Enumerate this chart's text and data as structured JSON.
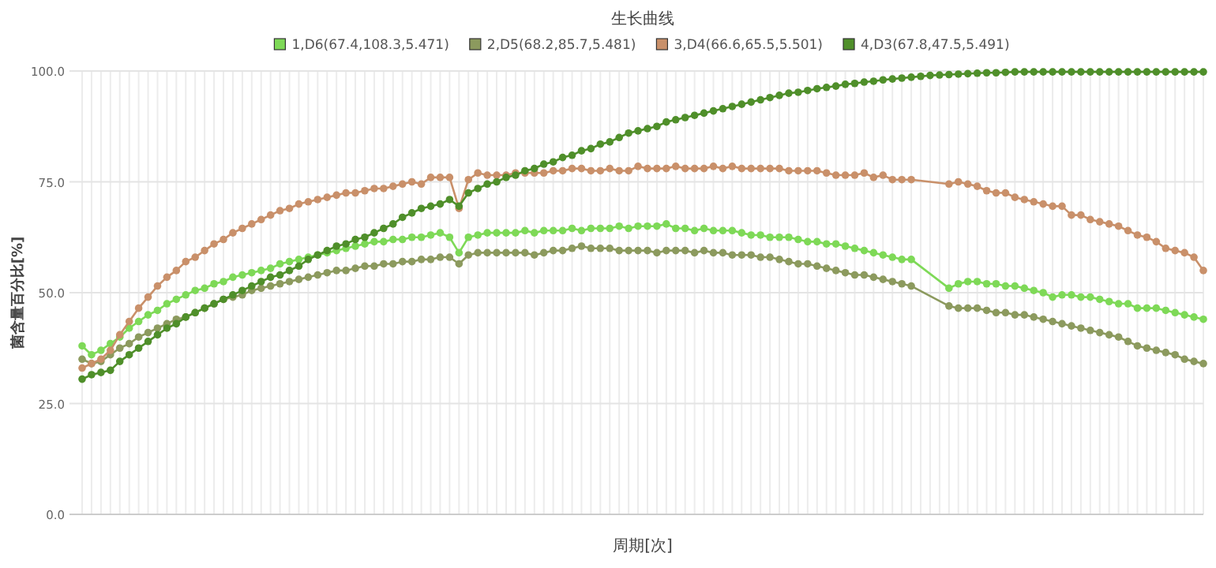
{
  "chart_data": {
    "type": "line",
    "title": "生长曲线",
    "xlabel": "周期[次]",
    "ylabel": "菌含量百分比[%]",
    "categories": [
      null,
      null,
      null,
      null,
      null,
      null,
      null,
      null,
      null,
      null,
      null,
      null,
      null,
      null,
      null,
      null,
      null,
      null,
      null,
      null,
      null,
      null,
      null,
      null,
      null,
      null,
      null,
      null,
      null,
      null,
      null,
      null,
      null,
      null,
      null,
      null,
      null,
      null,
      null,
      null,
      null,
      null,
      null,
      null,
      null,
      null,
      null,
      null,
      null,
      null,
      null,
      null,
      null,
      null,
      null,
      null,
      null,
      null,
      null,
      null,
      null,
      null,
      null,
      null,
      null,
      null,
      null,
      null,
      null,
      null,
      null,
      null,
      null,
      null,
      null,
      null,
      null,
      null,
      null,
      null,
      null,
      null,
      null,
      null,
      null,
      null,
      null,
      null,
      null,
      null,
      null,
      null,
      null,
      null,
      null,
      null,
      null,
      null,
      null,
      null,
      null,
      null,
      null,
      null,
      null,
      null,
      null,
      null,
      null,
      null,
      null,
      null,
      null,
      null,
      null,
      null,
      null,
      null,
      null,
      null
    ],
    "series": [
      {
        "name": "1,D6(67.4,108.3,5.471)",
        "color": "#7ed957",
        "values": [
          38,
          36,
          37,
          38.5,
          40,
          42,
          43.5,
          45,
          46,
          47.5,
          48.5,
          49.5,
          50.5,
          51,
          52,
          52.5,
          53.5,
          54,
          54.5,
          55,
          55.5,
          56.5,
          57,
          57.5,
          58,
          58.5,
          59,
          59.5,
          60,
          60.5,
          61,
          61.5,
          61.5,
          62,
          62,
          62.5,
          62.5,
          63,
          63.5,
          62.5,
          59,
          62.5,
          63,
          63.5,
          63.5,
          63.5,
          63.5,
          64,
          63.5,
          64,
          64,
          64,
          64.5,
          64,
          64.5,
          64.5,
          64.5,
          65,
          64.5,
          65,
          65,
          65,
          65.5,
          64.5,
          64.5,
          64,
          64.5,
          64,
          64,
          64,
          63.5,
          63,
          63,
          62.5,
          62.5,
          62.5,
          62,
          61.5,
          61.5,
          61,
          61,
          60.5,
          60,
          59.5,
          59,
          58.5,
          58,
          57.5,
          57.5,
          null,
          null,
          null,
          51,
          52,
          52.5,
          52.5,
          52,
          52,
          51.5,
          51.5,
          51,
          50.5,
          50,
          49,
          49.5,
          49.5,
          49,
          49,
          48.5,
          48,
          47.5,
          47.5,
          46.5,
          46.5,
          46.5,
          46,
          45.5,
          45,
          44.5,
          44
        ]
      },
      {
        "name": "2,D5(68.2,85.7,5.481)",
        "color": "#8c9a5e",
        "values": [
          35,
          34,
          34.5,
          36,
          37.5,
          38.5,
          40,
          41,
          42,
          43,
          44,
          44.5,
          45.5,
          46.5,
          47.5,
          48.5,
          49,
          49.5,
          50.5,
          51,
          51.5,
          52,
          52.5,
          53,
          53.5,
          54,
          54.5,
          55,
          55,
          55.5,
          56,
          56,
          56.5,
          56.5,
          57,
          57,
          57.5,
          57.5,
          58,
          58,
          56.5,
          58.5,
          59,
          59,
          59,
          59,
          59,
          59,
          58.5,
          59,
          59.5,
          59.5,
          60,
          60.5,
          60,
          60,
          60,
          59.5,
          59.5,
          59.5,
          59.5,
          59,
          59.5,
          59.5,
          59.5,
          59,
          59.5,
          59,
          59,
          58.5,
          58.5,
          58.5,
          58,
          58,
          57.5,
          57,
          56.5,
          56.5,
          56,
          55.5,
          55,
          54.5,
          54,
          54,
          53.5,
          53,
          52.5,
          52,
          51.5,
          null,
          null,
          null,
          47,
          46.5,
          46.5,
          46.5,
          46,
          45.5,
          45.5,
          45,
          45,
          44.5,
          44,
          43.5,
          43,
          42.5,
          42,
          41.5,
          41,
          40.5,
          40,
          39,
          38,
          37.5,
          37,
          36.5,
          36,
          35,
          34.5,
          34
        ]
      },
      {
        "name": "3,D4(66.6,65.5,5.501)",
        "color": "#c9906a",
        "values": [
          33,
          34,
          35,
          37,
          40.5,
          43.5,
          46.5,
          49,
          51.5,
          53.5,
          55,
          57,
          58,
          59.5,
          61,
          62,
          63.5,
          64.5,
          65.5,
          66.5,
          67.5,
          68.5,
          69,
          70,
          70.5,
          71,
          71.5,
          72,
          72.5,
          72.5,
          73,
          73.5,
          73.5,
          74,
          74.5,
          75,
          74.5,
          76,
          76,
          76,
          69,
          75.5,
          77,
          76.5,
          76.5,
          76.5,
          77,
          77,
          77,
          77,
          77.5,
          77.5,
          78,
          78,
          77.5,
          77.5,
          78,
          77.5,
          77.5,
          78.5,
          78,
          78,
          78,
          78.5,
          78,
          78,
          78,
          78.5,
          78,
          78.5,
          78,
          78,
          78,
          78,
          78,
          77.5,
          77.5,
          77.5,
          77.5,
          77,
          76.5,
          76.5,
          76.5,
          77,
          76,
          76.5,
          75.5,
          75.5,
          75.5,
          null,
          null,
          null,
          74.5,
          75,
          74.5,
          74,
          73,
          72.5,
          72.5,
          71.5,
          71,
          70.5,
          70,
          69.5,
          69.5,
          67.5,
          67.5,
          66.5,
          66,
          65.5,
          65,
          64,
          63,
          62.5,
          61.5,
          60,
          59.5,
          59,
          58,
          55
        ]
      },
      {
        "name": "4,D3(67.8,47.5,5.491)",
        "color": "#4f8f2a",
        "values": [
          30.5,
          31.5,
          32,
          32.5,
          34.5,
          36,
          37.5,
          39,
          40.5,
          42,
          43,
          44.5,
          45.5,
          46.5,
          47.5,
          48.5,
          49.5,
          50.5,
          51.5,
          52.5,
          53.5,
          54,
          55,
          56,
          57.5,
          58.5,
          59.5,
          60.5,
          61,
          62,
          62.5,
          63.5,
          64.5,
          65.5,
          67,
          68,
          69,
          69.5,
          70,
          71,
          69.5,
          72.5,
          73.5,
          74.5,
          75,
          76,
          76.5,
          77.5,
          78,
          79,
          79.5,
          80.5,
          81,
          82,
          82.5,
          83.5,
          84,
          85,
          86,
          86.5,
          87,
          87.5,
          88.5,
          89,
          89.5,
          90,
          90.5,
          91,
          91.5,
          92,
          92.5,
          93,
          93.5,
          94,
          94.5,
          95,
          95.2,
          95.6,
          96,
          96.3,
          96.6,
          97,
          97.2,
          97.5,
          97.7,
          98,
          98.2,
          98.4,
          98.6,
          98.8,
          99,
          99.1,
          99.2,
          99.3,
          99.4,
          99.5,
          99.6,
          99.6,
          99.7,
          99.8,
          99.8,
          99.8,
          99.8,
          99.8,
          99.8,
          99.8,
          99.8,
          99.8,
          99.8,
          99.8,
          99.8,
          99.8,
          99.8,
          99.8,
          99.8,
          99.8,
          99.8,
          99.8,
          99.8,
          99.8
        ]
      }
    ],
    "ylim": [
      0,
      100
    ],
    "yticks": [
      {
        "value": 0,
        "label": "0.0"
      },
      {
        "value": 25,
        "label": "25.0"
      },
      {
        "value": 50,
        "label": "50.0"
      },
      {
        "value": 75,
        "label": "75.0"
      },
      {
        "value": 100,
        "label": "100.0"
      }
    ],
    "grid": true,
    "legend": "top",
    "marker": "circle"
  }
}
